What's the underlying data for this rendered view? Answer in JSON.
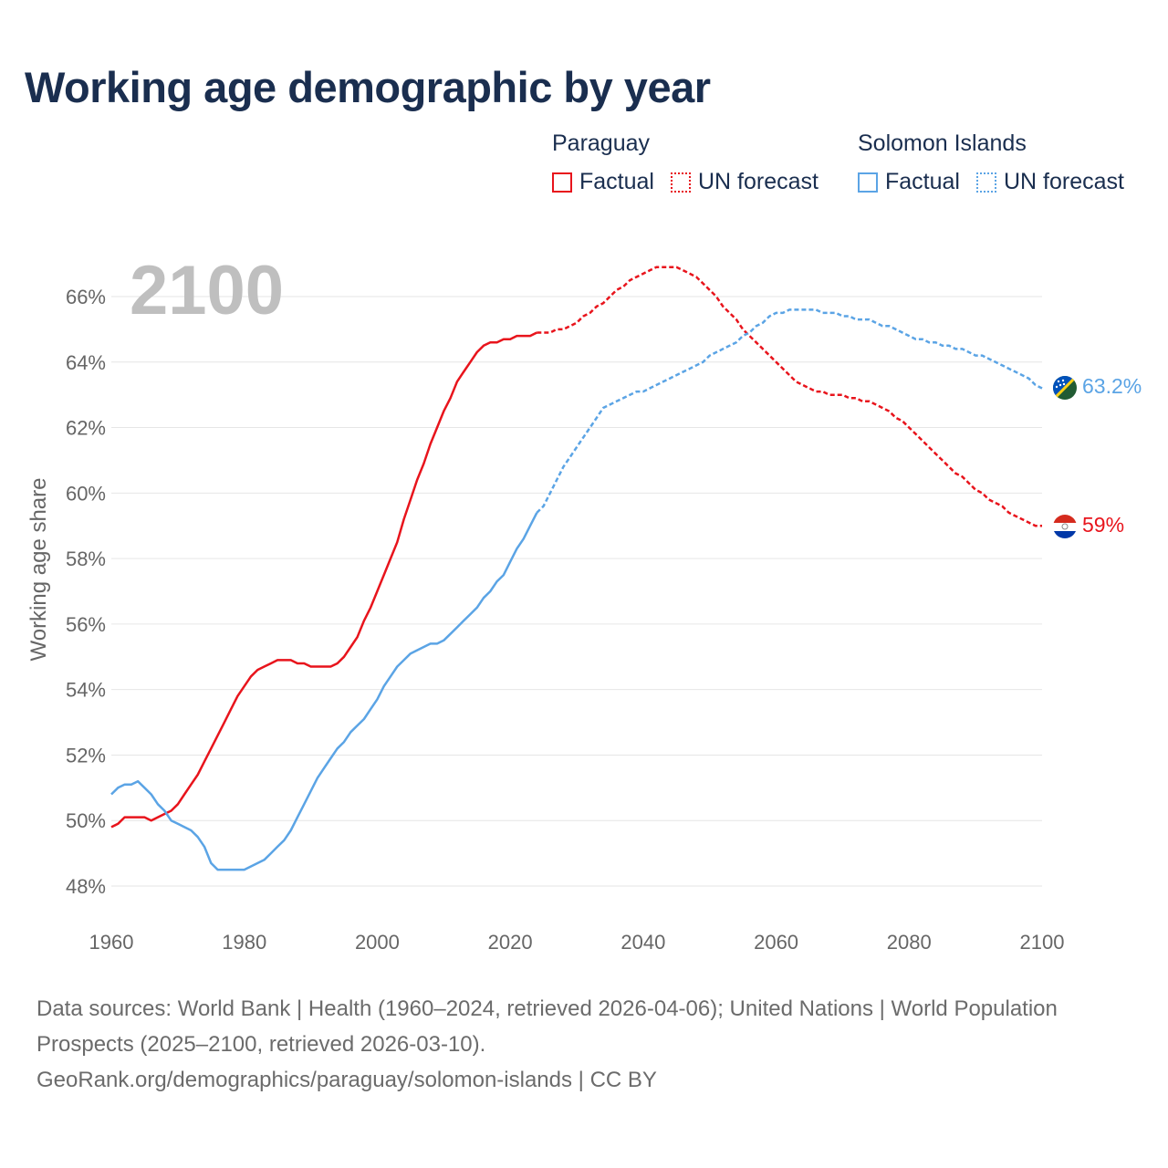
{
  "title": "Working age demographic by year",
  "legend": {
    "groups": [
      {
        "name": "Paraguay",
        "color": "#e8141c",
        "items": [
          {
            "label": "Factual",
            "style": "solid"
          },
          {
            "label": "UN forecast",
            "style": "dotted"
          }
        ]
      },
      {
        "name": "Solomon Islands",
        "color": "#5ba4e5",
        "items": [
          {
            "label": "Factual",
            "style": "solid"
          },
          {
            "label": "UN forecast",
            "style": "dotted"
          }
        ]
      }
    ]
  },
  "year_watermark": "2100",
  "footer": {
    "line1": "Data sources: World Bank | Health (1960–2024, retrieved 2026-04-06); United Nations | World Population Prospects (2025–2100, retrieved 2026-03-10).",
    "line2": "GeoRank.org/demographics/paraguay/solomon-islands | CC BY"
  },
  "chart_data": {
    "type": "line",
    "ylabel": "Working age share",
    "xlabel": "",
    "xlim": [
      1960,
      2100
    ],
    "ylim": [
      47.2,
      67.4
    ],
    "x_ticks": [
      "1960",
      "1980",
      "2000",
      "2020",
      "2040",
      "2060",
      "2080",
      "2100"
    ],
    "y_ticks": [
      "48%",
      "50%",
      "52%",
      "54%",
      "56%",
      "58%",
      "60%",
      "62%",
      "64%",
      "66%"
    ],
    "forecast_start": 2024,
    "series": [
      {
        "name": "Paraguay",
        "color": "#e8141c",
        "end_label": "59%",
        "points": [
          [
            1960,
            49.8
          ],
          [
            1961,
            49.9
          ],
          [
            1962,
            50.1
          ],
          [
            1963,
            50.1
          ],
          [
            1964,
            50.1
          ],
          [
            1965,
            50.1
          ],
          [
            1966,
            50.0
          ],
          [
            1967,
            50.1
          ],
          [
            1968,
            50.2
          ],
          [
            1969,
            50.3
          ],
          [
            1970,
            50.5
          ],
          [
            1971,
            50.8
          ],
          [
            1972,
            51.1
          ],
          [
            1973,
            51.4
          ],
          [
            1974,
            51.8
          ],
          [
            1975,
            52.2
          ],
          [
            1976,
            52.6
          ],
          [
            1977,
            53.0
          ],
          [
            1978,
            53.4
          ],
          [
            1979,
            53.8
          ],
          [
            1980,
            54.1
          ],
          [
            1981,
            54.4
          ],
          [
            1982,
            54.6
          ],
          [
            1983,
            54.7
          ],
          [
            1984,
            54.8
          ],
          [
            1985,
            54.9
          ],
          [
            1986,
            54.9
          ],
          [
            1987,
            54.9
          ],
          [
            1988,
            54.8
          ],
          [
            1989,
            54.8
          ],
          [
            1990,
            54.7
          ],
          [
            1991,
            54.7
          ],
          [
            1992,
            54.7
          ],
          [
            1993,
            54.7
          ],
          [
            1994,
            54.8
          ],
          [
            1995,
            55.0
          ],
          [
            1996,
            55.3
          ],
          [
            1997,
            55.6
          ],
          [
            1998,
            56.1
          ],
          [
            1999,
            56.5
          ],
          [
            2000,
            57.0
          ],
          [
            2001,
            57.5
          ],
          [
            2002,
            58.0
          ],
          [
            2003,
            58.5
          ],
          [
            2004,
            59.2
          ],
          [
            2005,
            59.8
          ],
          [
            2006,
            60.4
          ],
          [
            2007,
            60.9
          ],
          [
            2008,
            61.5
          ],
          [
            2009,
            62.0
          ],
          [
            2010,
            62.5
          ],
          [
            2011,
            62.9
          ],
          [
            2012,
            63.4
          ],
          [
            2013,
            63.7
          ],
          [
            2014,
            64.0
          ],
          [
            2015,
            64.3
          ],
          [
            2016,
            64.5
          ],
          [
            2017,
            64.6
          ],
          [
            2018,
            64.6
          ],
          [
            2019,
            64.7
          ],
          [
            2020,
            64.7
          ],
          [
            2021,
            64.8
          ],
          [
            2022,
            64.8
          ],
          [
            2023,
            64.8
          ],
          [
            2024,
            64.9
          ],
          [
            2025,
            64.9
          ],
          [
            2026,
            64.9
          ],
          [
            2027,
            65.0
          ],
          [
            2028,
            65.0
          ],
          [
            2029,
            65.1
          ],
          [
            2030,
            65.2
          ],
          [
            2031,
            65.4
          ],
          [
            2032,
            65.5
          ],
          [
            2033,
            65.7
          ],
          [
            2034,
            65.8
          ],
          [
            2035,
            66.0
          ],
          [
            2036,
            66.2
          ],
          [
            2037,
            66.3
          ],
          [
            2038,
            66.5
          ],
          [
            2039,
            66.6
          ],
          [
            2040,
            66.7
          ],
          [
            2041,
            66.8
          ],
          [
            2042,
            66.9
          ],
          [
            2043,
            66.9
          ],
          [
            2044,
            66.9
          ],
          [
            2045,
            66.9
          ],
          [
            2046,
            66.8
          ],
          [
            2047,
            66.7
          ],
          [
            2048,
            66.6
          ],
          [
            2049,
            66.4
          ],
          [
            2050,
            66.2
          ],
          [
            2051,
            66.0
          ],
          [
            2052,
            65.7
          ],
          [
            2053,
            65.5
          ],
          [
            2054,
            65.3
          ],
          [
            2055,
            65.0
          ],
          [
            2056,
            64.8
          ],
          [
            2057,
            64.6
          ],
          [
            2058,
            64.4
          ],
          [
            2059,
            64.2
          ],
          [
            2060,
            64.0
          ],
          [
            2061,
            63.8
          ],
          [
            2062,
            63.6
          ],
          [
            2063,
            63.4
          ],
          [
            2064,
            63.3
          ],
          [
            2065,
            63.2
          ],
          [
            2066,
            63.1
          ],
          [
            2067,
            63.1
          ],
          [
            2068,
            63.0
          ],
          [
            2069,
            63.0
          ],
          [
            2070,
            63.0
          ],
          [
            2071,
            62.9
          ],
          [
            2072,
            62.9
          ],
          [
            2073,
            62.8
          ],
          [
            2074,
            62.8
          ],
          [
            2075,
            62.7
          ],
          [
            2076,
            62.6
          ],
          [
            2077,
            62.5
          ],
          [
            2078,
            62.3
          ],
          [
            2079,
            62.2
          ],
          [
            2080,
            62.0
          ],
          [
            2081,
            61.8
          ],
          [
            2082,
            61.6
          ],
          [
            2083,
            61.4
          ],
          [
            2084,
            61.2
          ],
          [
            2085,
            61.0
          ],
          [
            2086,
            60.8
          ],
          [
            2087,
            60.6
          ],
          [
            2088,
            60.5
          ],
          [
            2089,
            60.3
          ],
          [
            2090,
            60.1
          ],
          [
            2091,
            60.0
          ],
          [
            2092,
            59.8
          ],
          [
            2093,
            59.7
          ],
          [
            2094,
            59.6
          ],
          [
            2095,
            59.4
          ],
          [
            2096,
            59.3
          ],
          [
            2097,
            59.2
          ],
          [
            2098,
            59.1
          ],
          [
            2099,
            59.0
          ],
          [
            2100,
            59.0
          ]
        ]
      },
      {
        "name": "Solomon Islands",
        "color": "#5ba4e5",
        "end_label": "63.2%",
        "points": [
          [
            1960,
            50.8
          ],
          [
            1961,
            51.0
          ],
          [
            1962,
            51.1
          ],
          [
            1963,
            51.1
          ],
          [
            1964,
            51.2
          ],
          [
            1965,
            51.0
          ],
          [
            1966,
            50.8
          ],
          [
            1967,
            50.5
          ],
          [
            1968,
            50.3
          ],
          [
            1969,
            50.0
          ],
          [
            1970,
            49.9
          ],
          [
            1971,
            49.8
          ],
          [
            1972,
            49.7
          ],
          [
            1973,
            49.5
          ],
          [
            1974,
            49.2
          ],
          [
            1975,
            48.7
          ],
          [
            1976,
            48.5
          ],
          [
            1977,
            48.5
          ],
          [
            1978,
            48.5
          ],
          [
            1979,
            48.5
          ],
          [
            1980,
            48.5
          ],
          [
            1981,
            48.6
          ],
          [
            1982,
            48.7
          ],
          [
            1983,
            48.8
          ],
          [
            1984,
            49.0
          ],
          [
            1985,
            49.2
          ],
          [
            1986,
            49.4
          ],
          [
            1987,
            49.7
          ],
          [
            1988,
            50.1
          ],
          [
            1989,
            50.5
          ],
          [
            1990,
            50.9
          ],
          [
            1991,
            51.3
          ],
          [
            1992,
            51.6
          ],
          [
            1993,
            51.9
          ],
          [
            1994,
            52.2
          ],
          [
            1995,
            52.4
          ],
          [
            1996,
            52.7
          ],
          [
            1997,
            52.9
          ],
          [
            1998,
            53.1
          ],
          [
            1999,
            53.4
          ],
          [
            2000,
            53.7
          ],
          [
            2001,
            54.1
          ],
          [
            2002,
            54.4
          ],
          [
            2003,
            54.7
          ],
          [
            2004,
            54.9
          ],
          [
            2005,
            55.1
          ],
          [
            2006,
            55.2
          ],
          [
            2007,
            55.3
          ],
          [
            2008,
            55.4
          ],
          [
            2009,
            55.4
          ],
          [
            2010,
            55.5
          ],
          [
            2011,
            55.7
          ],
          [
            2012,
            55.9
          ],
          [
            2013,
            56.1
          ],
          [
            2014,
            56.3
          ],
          [
            2015,
            56.5
          ],
          [
            2016,
            56.8
          ],
          [
            2017,
            57.0
          ],
          [
            2018,
            57.3
          ],
          [
            2019,
            57.5
          ],
          [
            2020,
            57.9
          ],
          [
            2021,
            58.3
          ],
          [
            2022,
            58.6
          ],
          [
            2023,
            59.0
          ],
          [
            2024,
            59.4
          ],
          [
            2025,
            59.6
          ],
          [
            2026,
            60.0
          ],
          [
            2027,
            60.4
          ],
          [
            2028,
            60.8
          ],
          [
            2029,
            61.1
          ],
          [
            2030,
            61.4
          ],
          [
            2031,
            61.7
          ],
          [
            2032,
            62.0
          ],
          [
            2033,
            62.3
          ],
          [
            2034,
            62.6
          ],
          [
            2035,
            62.7
          ],
          [
            2036,
            62.8
          ],
          [
            2037,
            62.9
          ],
          [
            2038,
            63.0
          ],
          [
            2039,
            63.1
          ],
          [
            2040,
            63.1
          ],
          [
            2041,
            63.2
          ],
          [
            2042,
            63.3
          ],
          [
            2043,
            63.4
          ],
          [
            2044,
            63.5
          ],
          [
            2045,
            63.6
          ],
          [
            2046,
            63.7
          ],
          [
            2047,
            63.8
          ],
          [
            2048,
            63.9
          ],
          [
            2049,
            64.0
          ],
          [
            2050,
            64.2
          ],
          [
            2051,
            64.3
          ],
          [
            2052,
            64.4
          ],
          [
            2053,
            64.5
          ],
          [
            2054,
            64.6
          ],
          [
            2055,
            64.8
          ],
          [
            2056,
            64.9
          ],
          [
            2057,
            65.1
          ],
          [
            2058,
            65.2
          ],
          [
            2059,
            65.4
          ],
          [
            2060,
            65.5
          ],
          [
            2061,
            65.5
          ],
          [
            2062,
            65.6
          ],
          [
            2063,
            65.6
          ],
          [
            2064,
            65.6
          ],
          [
            2065,
            65.6
          ],
          [
            2066,
            65.6
          ],
          [
            2067,
            65.5
          ],
          [
            2068,
            65.5
          ],
          [
            2069,
            65.5
          ],
          [
            2070,
            65.4
          ],
          [
            2071,
            65.4
          ],
          [
            2072,
            65.3
          ],
          [
            2073,
            65.3
          ],
          [
            2074,
            65.3
          ],
          [
            2075,
            65.2
          ],
          [
            2076,
            65.1
          ],
          [
            2077,
            65.1
          ],
          [
            2078,
            65.0
          ],
          [
            2079,
            64.9
          ],
          [
            2080,
            64.8
          ],
          [
            2081,
            64.7
          ],
          [
            2082,
            64.7
          ],
          [
            2083,
            64.6
          ],
          [
            2084,
            64.6
          ],
          [
            2085,
            64.5
          ],
          [
            2086,
            64.5
          ],
          [
            2087,
            64.4
          ],
          [
            2088,
            64.4
          ],
          [
            2089,
            64.3
          ],
          [
            2090,
            64.2
          ],
          [
            2091,
            64.2
          ],
          [
            2092,
            64.1
          ],
          [
            2093,
            64.0
          ],
          [
            2094,
            63.9
          ],
          [
            2095,
            63.8
          ],
          [
            2096,
            63.7
          ],
          [
            2097,
            63.6
          ],
          [
            2098,
            63.5
          ],
          [
            2099,
            63.3
          ],
          [
            2100,
            63.2
          ]
        ]
      }
    ]
  }
}
